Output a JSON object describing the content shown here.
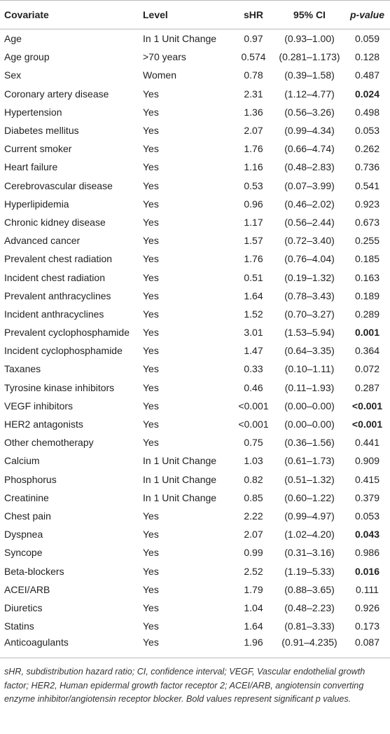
{
  "table": {
    "header": [
      "Covariate",
      "Level",
      "sHR",
      "95% CI",
      "p-value"
    ],
    "rows": [
      {
        "cells": [
          "Age",
          "In 1 Unit Change",
          "0.97",
          "(0.93–1.00)",
          "0.059"
        ]
      },
      {
        "cells": [
          "Age group",
          ">70 years",
          "0.574",
          "(0.281–1.173)",
          "0.128"
        ]
      },
      {
        "cells": [
          "Sex",
          "Women",
          "0.78",
          "(0.39–1.58)",
          "0.487"
        ]
      },
      {
        "cells": [
          "Coronary artery disease",
          "Yes",
          "2.31",
          "(1.12–4.77)",
          "0.024"
        ],
        "bold": true
      },
      {
        "cells": [
          "Hypertension",
          "Yes",
          "1.36",
          "(0.56–3.26)",
          "0.498"
        ]
      },
      {
        "cells": [
          "Diabetes mellitus",
          "Yes",
          "2.07",
          "(0.99–4.34)",
          "0.053"
        ]
      },
      {
        "cells": [
          "Current smoker",
          "Yes",
          "1.76",
          "(0.66–4.74)",
          "0.262"
        ]
      },
      {
        "cells": [
          "Heart failure",
          "Yes",
          "1.16",
          "(0.48–2.83)",
          "0.736"
        ]
      },
      {
        "cells": [
          "Cerebrovascular disease",
          "Yes",
          "0.53",
          "(0.07–3.99)",
          "0.541"
        ]
      },
      {
        "cells": [
          "Hyperlipidemia",
          "Yes",
          "0.96",
          "(0.46–2.02)",
          "0.923"
        ]
      },
      {
        "cells": [
          "Chronic kidney disease",
          "Yes",
          "1.17",
          "(0.56–2.44)",
          "0.673"
        ]
      },
      {
        "cells": [
          "Advanced cancer",
          "Yes",
          "1.57",
          "(0.72–3.40)",
          "0.255"
        ]
      },
      {
        "cells": [
          "Prevalent chest radiation",
          "Yes",
          "1.76",
          "(0.76–4.04)",
          "0.185"
        ]
      },
      {
        "cells": [
          "Incident chest radiation",
          "Yes",
          "0.51",
          "(0.19–1.32)",
          "0.163"
        ]
      },
      {
        "cells": [
          "Prevalent anthracyclines",
          "Yes",
          "1.64",
          "(0.78–3.43)",
          "0.189"
        ]
      },
      {
        "cells": [
          "Incident anthracyclines",
          "Yes",
          "1.52",
          "(0.70–3.27)",
          "0.289"
        ]
      },
      {
        "cells": [
          "Prevalent cyclophosphamide",
          "Yes",
          "3.01",
          "(1.53–5.94)",
          "0.001"
        ],
        "bold": true
      },
      {
        "cells": [
          "Incident cyclophosphamide",
          "Yes",
          "1.47",
          "(0.64–3.35)",
          "0.364"
        ]
      },
      {
        "cells": [
          "Taxanes",
          "Yes",
          "0.33",
          "(0.10–1.11)",
          "0.072"
        ]
      },
      {
        "cells": [
          "Tyrosine kinase inhibitors",
          "Yes",
          "0.46",
          "(0.11–1.93)",
          "0.287"
        ]
      },
      {
        "cells": [
          "VEGF inhibitors",
          "Yes",
          "<0.001",
          "(0.00–0.00)",
          "<0.001"
        ],
        "bold": true
      },
      {
        "cells": [
          "HER2 antagonists",
          "Yes",
          "<0.001",
          "(0.00–0.00)",
          "<0.001"
        ],
        "bold": true
      },
      {
        "cells": [
          "Other chemotherapy",
          "Yes",
          "0.75",
          "(0.36–1.56)",
          "0.441"
        ]
      },
      {
        "cells": [
          "Calcium",
          "In 1 Unit Change",
          "1.03",
          "(0.61–1.73)",
          "0.909"
        ]
      },
      {
        "cells": [
          "Phosphorus",
          "In 1 Unit Change",
          "0.82",
          "(0.51–1.32)",
          "0.415"
        ]
      },
      {
        "cells": [
          "Creatinine",
          "In 1 Unit Change",
          "0.85",
          "(0.60–1.22)",
          "0.379"
        ]
      },
      {
        "cells": [
          "Chest pain",
          "Yes",
          "2.22",
          "(0.99–4.97)",
          "0.053"
        ]
      },
      {
        "cells": [
          "Dyspnea",
          "Yes",
          "2.07",
          "(1.02–4.20)",
          "0.043"
        ],
        "bold": true
      },
      {
        "cells": [
          "Syncope",
          "Yes",
          "0.99",
          "(0.31–3.16)",
          "0.986"
        ]
      },
      {
        "cells": [
          "Beta-blockers",
          "Yes",
          "2.52",
          "(1.19–5.33)",
          "0.016"
        ],
        "bold": true
      },
      {
        "cells": [
          "ACEI/ARB",
          "Yes",
          "1.79",
          "(0.88–3.65)",
          "0.111"
        ]
      },
      {
        "cells": [
          "Diuretics",
          "Yes",
          "1.04",
          "(0.48–2.23)",
          "0.926"
        ]
      },
      {
        "cells": [
          "Statins",
          "Yes",
          "1.64",
          "(0.81–3.33)",
          "0.173"
        ]
      },
      {
        "cells": [
          "Anticoagulants",
          "Yes",
          "1.96",
          "(0.91–4.235)",
          "0.087"
        ]
      }
    ],
    "footnote": "sHR, subdistribution hazard ratio; CI, confidence interval; VEGF, Vascular endothelial growth factor; HER2, Human epidermal growth factor receptor 2; ACEI/ARB, angiotensin converting enzyme inhibitor/angiotensin receptor blocker. Bold values represent significant p values."
  }
}
